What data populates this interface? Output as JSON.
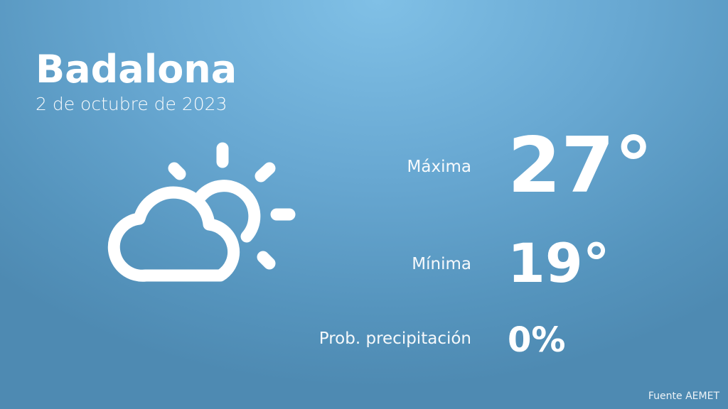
{
  "header": {
    "city": "Badalona",
    "date": "2 de octubre de 2023"
  },
  "weather": {
    "icon": "partly-cloudy-icon",
    "max_label": "Máxima",
    "max_value": "27°",
    "min_label": "Mínima",
    "min_value": "19°",
    "prob_label": "Prob. precipitación",
    "prob_value": "0%"
  },
  "footer": {
    "source": "Fuente AEMET"
  },
  "colors": {
    "background_top": "#80c0e6",
    "background_bottom": "#4e8ab2",
    "text": "#ffffff"
  }
}
